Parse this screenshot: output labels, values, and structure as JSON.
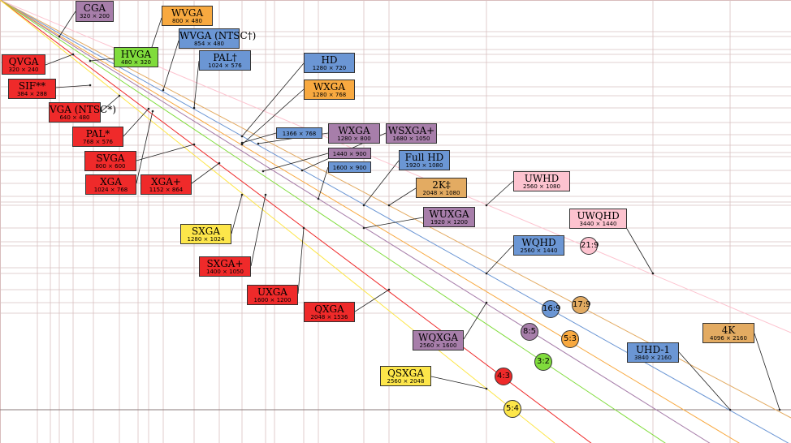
{
  "colors": {
    "purple": "#a77eaa",
    "orange": "#f8a940",
    "blue": "#6b96d4",
    "green": "#80dc3c",
    "red": "#ef2a2a",
    "yellow": "#fde64a",
    "tan": "#e3ab62",
    "pink": "#fdc3cf"
  },
  "standards": [
    {
      "name": "CGA",
      "dims": "320 × 200",
      "color": "purple"
    },
    {
      "name": "WVGA",
      "dims": "800 × 480",
      "color": "orange"
    },
    {
      "name": "WVGA (NTSC†)",
      "dims": "854 × 480",
      "color": "blue"
    },
    {
      "name": "QVGA",
      "dims": "320 × 240",
      "color": "red"
    },
    {
      "name": "HVGA",
      "dims": "480 × 320",
      "color": "green"
    },
    {
      "name": "PAL†",
      "dims": "1024 × 576",
      "color": "blue"
    },
    {
      "name": "HD",
      "dims": "1280 × 720",
      "color": "blue"
    },
    {
      "name": "SIF**",
      "dims": "384 × 288",
      "color": "red"
    },
    {
      "name": "WXGA",
      "dims": "1280 × 768",
      "color": "orange"
    },
    {
      "name": "VGA (NTSC*)",
      "dims": "640 × 480",
      "color": "red"
    },
    {
      "name": "PAL*",
      "dims": "768 × 576",
      "color": "red"
    },
    {
      "name": "",
      "dims": "1366 × 768",
      "color": "blue"
    },
    {
      "name": "WXGA",
      "dims": "1280 × 800",
      "color": "purple"
    },
    {
      "name": "WSXGA+",
      "dims": "1680 × 1050",
      "color": "purple"
    },
    {
      "name": "",
      "dims": "1440 × 900",
      "color": "purple"
    },
    {
      "name": "SVGA",
      "dims": "800 × 600",
      "color": "red"
    },
    {
      "name": "Full HD",
      "dims": "1920 × 1080",
      "color": "blue"
    },
    {
      "name": "",
      "dims": "1600 × 900",
      "color": "blue"
    },
    {
      "name": "UWHD",
      "dims": "2560 × 1080",
      "color": "pink"
    },
    {
      "name": "XGA",
      "dims": "1024 × 768",
      "color": "red"
    },
    {
      "name": "XGA+",
      "dims": "1152 × 864",
      "color": "red"
    },
    {
      "name": "2K‡",
      "dims": "2048 × 1080",
      "color": "tan"
    },
    {
      "name": "WUXGA",
      "dims": "1920 × 1200",
      "color": "purple"
    },
    {
      "name": "UWQHD",
      "dims": "3440 × 1440",
      "color": "pink"
    },
    {
      "name": "SXGA",
      "dims": "1280 × 1024",
      "color": "yellow"
    },
    {
      "name": "WQHD",
      "dims": "2560 × 1440",
      "color": "blue"
    },
    {
      "name": "SXGA+",
      "dims": "1400 × 1050",
      "color": "red"
    },
    {
      "name": "UXGA",
      "dims": "1600 × 1200",
      "color": "red"
    },
    {
      "name": "QXGA",
      "dims": "2048 × 1536",
      "color": "red"
    },
    {
      "name": "4K",
      "dims": "4096 × 2160",
      "color": "tan"
    },
    {
      "name": "WQXGA",
      "dims": "2560 × 1600",
      "color": "purple"
    },
    {
      "name": "UHD-1",
      "dims": "3840 × 2160",
      "color": "blue"
    },
    {
      "name": "QSXGA",
      "dims": "2560 × 2048",
      "color": "yellow"
    }
  ],
  "aspect_ratios": [
    {
      "label": "21:9",
      "color": "pink"
    },
    {
      "label": "17:9",
      "color": "tan"
    },
    {
      "label": "16:9",
      "color": "blue"
    },
    {
      "label": "8:5",
      "color": "purple"
    },
    {
      "label": "5:3",
      "color": "orange"
    },
    {
      "label": "3:2",
      "color": "green"
    },
    {
      "label": "4:3",
      "color": "red"
    },
    {
      "label": "5:4",
      "color": "yellow"
    }
  ]
}
